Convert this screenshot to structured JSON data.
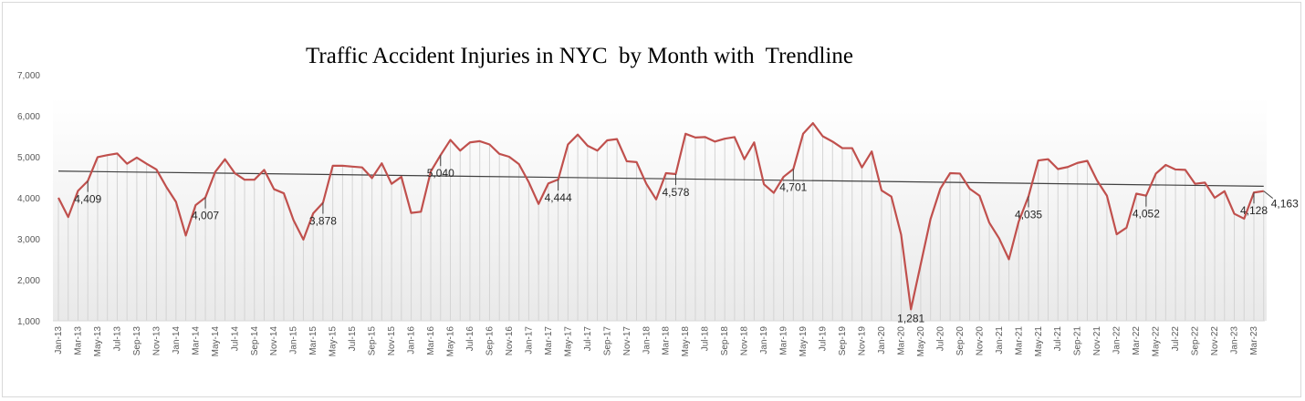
{
  "chart_data": {
    "type": "line",
    "title": "Traffic Accident Injuries in NYC  by Month with  Trendline",
    "xlabel": "",
    "ylabel": "",
    "ylim": [
      1000,
      7000
    ],
    "yticks": [
      "1,000",
      "2,000",
      "3,000",
      "4,000",
      "5,000",
      "6,000",
      "7,000"
    ],
    "grid": "vertical drop lines per month",
    "legend": "none",
    "colors": {
      "series": "#c0504d",
      "trendline": "#404040"
    },
    "categories": [
      "Jan-13",
      "Feb-13",
      "Mar-13",
      "Apr-13",
      "May-13",
      "Jun-13",
      "Jul-13",
      "Aug-13",
      "Sep-13",
      "Oct-13",
      "Nov-13",
      "Dec-13",
      "Jan-14",
      "Feb-14",
      "Mar-14",
      "Apr-14",
      "May-14",
      "Jun-14",
      "Jul-14",
      "Aug-14",
      "Sep-14",
      "Oct-14",
      "Nov-14",
      "Dec-14",
      "Jan-15",
      "Feb-15",
      "Mar-15",
      "Apr-15",
      "May-15",
      "Jun-15",
      "Jul-15",
      "Aug-15",
      "Sep-15",
      "Oct-15",
      "Nov-15",
      "Dec-15",
      "Jan-16",
      "Feb-16",
      "Mar-16",
      "Apr-16",
      "May-16",
      "Jun-16",
      "Jul-16",
      "Aug-16",
      "Sep-16",
      "Oct-16",
      "Nov-16",
      "Dec-16",
      "Jan-17",
      "Feb-17",
      "Mar-17",
      "Apr-17",
      "May-17",
      "Jun-17",
      "Jul-17",
      "Aug-17",
      "Sep-17",
      "Oct-17",
      "Nov-17",
      "Dec-17",
      "Jan-18",
      "Feb-18",
      "Mar-18",
      "Apr-18",
      "May-18",
      "Jun-18",
      "Jul-18",
      "Aug-18",
      "Sep-18",
      "Oct-18",
      "Nov-18",
      "Dec-18",
      "Jan-19",
      "Feb-19",
      "Mar-19",
      "Apr-19",
      "May-19",
      "Jun-19",
      "Jul-19",
      "Aug-19",
      "Sep-19",
      "Oct-19",
      "Nov-19",
      "Dec-19",
      "Jan-20",
      "Feb-20",
      "Mar-20",
      "Apr-20",
      "May-20",
      "Jun-20",
      "Jul-20",
      "Aug-20",
      "Sep-20",
      "Oct-20",
      "Nov-20",
      "Dec-20",
      "Jan-21",
      "Feb-21",
      "Mar-21",
      "Apr-21",
      "May-21",
      "Jun-21",
      "Jul-21",
      "Aug-21",
      "Sep-21",
      "Oct-21",
      "Nov-21",
      "Dec-21",
      "Jan-22",
      "Feb-22",
      "Mar-22",
      "Apr-22",
      "May-22",
      "Jun-22",
      "Jul-22",
      "Aug-22",
      "Sep-22",
      "Oct-22",
      "Nov-22",
      "Dec-22",
      "Jan-23",
      "Feb-23",
      "Mar-23",
      "Apr-23"
    ],
    "values": [
      4000,
      3530,
      4170,
      4409,
      4990,
      5040,
      5080,
      4830,
      4980,
      4830,
      4690,
      4270,
      3900,
      3080,
      3820,
      4007,
      4630,
      4940,
      4600,
      4440,
      4440,
      4680,
      4210,
      4110,
      3450,
      2980,
      3620,
      3878,
      4780,
      4780,
      4760,
      4740,
      4480,
      4840,
      4340,
      4510,
      3630,
      3660,
      4640,
      5040,
      5410,
      5150,
      5350,
      5380,
      5300,
      5070,
      5000,
      4820,
      4380,
      3850,
      4350,
      4444,
      5300,
      5540,
      5270,
      5150,
      5400,
      5430,
      4890,
      4870,
      4340,
      3960,
      4600,
      4578,
      5560,
      5470,
      5480,
      5370,
      5440,
      5480,
      4940,
      5350,
      4330,
      4120,
      4510,
      4701,
      5560,
      5820,
      5500,
      5370,
      5210,
      5210,
      4740,
      5130,
      4180,
      4030,
      3100,
      1281,
      2380,
      3480,
      4220,
      4600,
      4590,
      4220,
      4050,
      3390,
      3010,
      2500,
      3420,
      4035,
      4910,
      4940,
      4700,
      4750,
      4850,
      4900,
      4420,
      4050,
      3110,
      3270,
      4100,
      4052,
      4590,
      4800,
      4690,
      4680,
      4340,
      4370,
      4000,
      4160,
      3610,
      3490,
      4128,
      4163
    ],
    "trendline": {
      "type": "linear",
      "start": 4650,
      "end": 4280
    },
    "data_labels": [
      {
        "x": "Apr-13",
        "text": "4,409"
      },
      {
        "x": "Apr-14",
        "text": "4,007"
      },
      {
        "x": "Apr-15",
        "text": "3,878"
      },
      {
        "x": "Apr-16",
        "text": "5,040"
      },
      {
        "x": "Apr-17",
        "text": "4,444"
      },
      {
        "x": "Apr-18",
        "text": "4,578"
      },
      {
        "x": "Apr-19",
        "text": "4,701"
      },
      {
        "x": "Apr-20",
        "text": "1,281"
      },
      {
        "x": "Apr-21",
        "text": "4,035"
      },
      {
        "x": "Apr-22",
        "text": "4,052"
      },
      {
        "x": "Mar-23",
        "text": "4,128"
      },
      {
        "x": "Apr-23",
        "text": "4,163"
      }
    ]
  }
}
